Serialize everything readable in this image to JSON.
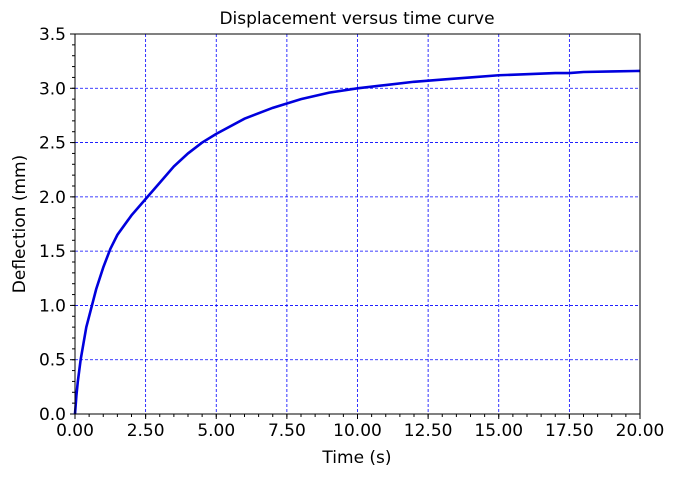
{
  "chart_data": {
    "type": "line",
    "title": "Displacement versus time curve",
    "xlabel": "Time (s)",
    "ylabel": "Deflection (mm)",
    "xlim": [
      0,
      20
    ],
    "ylim": [
      0,
      3.5
    ],
    "xticks": [
      0,
      2.5,
      5,
      7.5,
      10,
      12.5,
      15,
      17.5,
      20
    ],
    "xtick_labels": [
      "0.00",
      "2.50",
      "5.00",
      "7.50",
      "10.00",
      "12.50",
      "15.00",
      "17.50",
      "20.00"
    ],
    "yticks": [
      0,
      0.5,
      1,
      1.5,
      2,
      2.5,
      3,
      3.5
    ],
    "ytick_labels": [
      "0.0",
      "0.5",
      "1.0",
      "1.5",
      "2.0",
      "2.5",
      "3.0",
      "3.5"
    ],
    "grid": true,
    "grid_color": "#0000ff",
    "series": [
      {
        "color": "#0000dd",
        "x": [
          0,
          0.05,
          0.1,
          0.2,
          0.3,
          0.4,
          0.5,
          0.75,
          1,
          1.25,
          1.5,
          2,
          2.5,
          3,
          3.5,
          4,
          4.5,
          5,
          6,
          7,
          7.5,
          8,
          9,
          10,
          11,
          12,
          12.5,
          13,
          14,
          15,
          16,
          17,
          17.5,
          18,
          19,
          20
        ],
        "y": [
          0,
          0.17,
          0.3,
          0.5,
          0.65,
          0.8,
          0.9,
          1.15,
          1.35,
          1.52,
          1.65,
          1.83,
          1.98,
          2.13,
          2.28,
          2.4,
          2.5,
          2.58,
          2.72,
          2.82,
          2.86,
          2.9,
          2.96,
          3.0,
          3.03,
          3.06,
          3.07,
          3.08,
          3.1,
          3.12,
          3.13,
          3.14,
          3.14,
          3.15,
          3.155,
          3.16
        ]
      }
    ]
  }
}
